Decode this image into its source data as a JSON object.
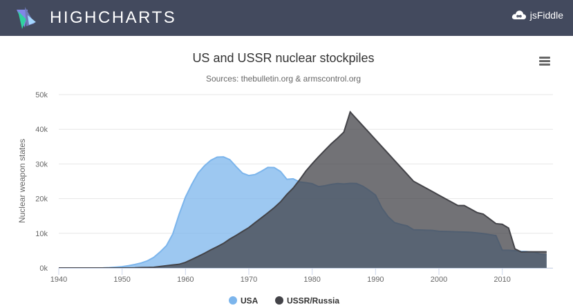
{
  "header": {
    "brand": "HIGHCHARTS",
    "brand_icon": "highcharts-logo",
    "fiddle_label": "jsFiddle",
    "fiddle_icon": "cloud-infinity-icon"
  },
  "menu": {
    "icon": "hamburger-menu-icon"
  },
  "chart_data": {
    "type": "area",
    "title": "US and USSR nuclear stockpiles",
    "subtitle": "Sources: thebulletin.org & armscontrol.org",
    "ylabel": "Nuclear weapon states",
    "xlabel": "",
    "xlim": [
      1940,
      2018
    ],
    "ylim": [
      0,
      50000
    ],
    "xticks": [
      1940,
      1950,
      1960,
      1970,
      1980,
      1990,
      2000,
      2010
    ],
    "yticks": [
      0,
      10000,
      20000,
      30000,
      40000,
      50000
    ],
    "ytick_labels": [
      "0k",
      "10k",
      "20k",
      "30k",
      "40k",
      "50k"
    ],
    "grid": true,
    "legend": "bottom-center",
    "series": [
      {
        "name": "USA",
        "color": "#7cb5ec",
        "x": [
          1940,
          1944,
          1945,
          1946,
          1947,
          1948,
          1949,
          1950,
          1951,
          1952,
          1953,
          1954,
          1955,
          1956,
          1957,
          1958,
          1959,
          1960,
          1961,
          1962,
          1963,
          1964,
          1965,
          1966,
          1967,
          1968,
          1969,
          1970,
          1971,
          1972,
          1973,
          1974,
          1975,
          1976,
          1977,
          1978,
          1979,
          1980,
          1981,
          1982,
          1983,
          1984,
          1985,
          1986,
          1987,
          1988,
          1989,
          1990,
          1991,
          1992,
          1993,
          1994,
          1995,
          1996,
          1997,
          1998,
          1999,
          2000,
          2001,
          2002,
          2003,
          2004,
          2005,
          2006,
          2007,
          2008,
          2009,
          2010,
          2011,
          2012,
          2013,
          2014,
          2015,
          2016,
          2017
        ],
        "values": [
          0,
          0,
          6,
          11,
          32,
          110,
          235,
          369,
          640,
          1005,
          1436,
          2063,
          3057,
          4618,
          6444,
          9822,
          15468,
          20434,
          24126,
          27387,
          29459,
          31056,
          31982,
          32040,
          31233,
          29224,
          27342,
          26662,
          26956,
          27912,
          28999,
          28965,
          27826,
          25579,
          25722,
          24826,
          24605,
          24304,
          23464,
          23708,
          24099,
          24357,
          24237,
          24401,
          24344,
          23586,
          22380,
          21004,
          17287,
          14747,
          13076,
          12555,
          12144,
          11009,
          10950,
          10871,
          10824,
          10577,
          10527,
          10475,
          10421,
          10358,
          10295,
          10104,
          9914,
          9620,
          9326,
          5113,
          5113,
          4954,
          4804,
          4717,
          4571,
          4018,
          3822
        ]
      },
      {
        "name": "USSR/Russia",
        "color": "#434348",
        "x": [
          1940,
          1949,
          1950,
          1951,
          1952,
          1953,
          1954,
          1955,
          1956,
          1957,
          1958,
          1959,
          1960,
          1961,
          1962,
          1963,
          1964,
          1965,
          1966,
          1967,
          1968,
          1969,
          1970,
          1971,
          1972,
          1973,
          1974,
          1975,
          1976,
          1977,
          1978,
          1979,
          1980,
          1981,
          1982,
          1983,
          1984,
          1985,
          1986,
          1987,
          1988,
          1989,
          1990,
          1991,
          1992,
          1993,
          1994,
          1995,
          1996,
          1997,
          1998,
          1999,
          2000,
          2001,
          2002,
          2003,
          2004,
          2005,
          2006,
          2007,
          2008,
          2009,
          2010,
          2011,
          2012,
          2013,
          2014,
          2015,
          2016,
          2017
        ],
        "values": [
          0,
          0,
          5,
          25,
          50,
          120,
          150,
          200,
          426,
          660,
          869,
          1060,
          1605,
          2471,
          3322,
          4238,
          5221,
          6129,
          7089,
          8339,
          9399,
          10538,
          11643,
          13092,
          14478,
          15915,
          17385,
          19055,
          21205,
          23044,
          25393,
          27935,
          30062,
          32049,
          33952,
          35804,
          37431,
          39197,
          45000,
          43000,
          41000,
          39000,
          37000,
          35000,
          33000,
          31000,
          29000,
          27000,
          25000,
          24000,
          23000,
          22000,
          21000,
          20000,
          19000,
          18000,
          18000,
          17000,
          16000,
          15537,
          14162,
          12787,
          12600,
          11500,
          5500,
          4600,
          4650,
          4650,
          4650,
          4650
        ]
      }
    ]
  }
}
